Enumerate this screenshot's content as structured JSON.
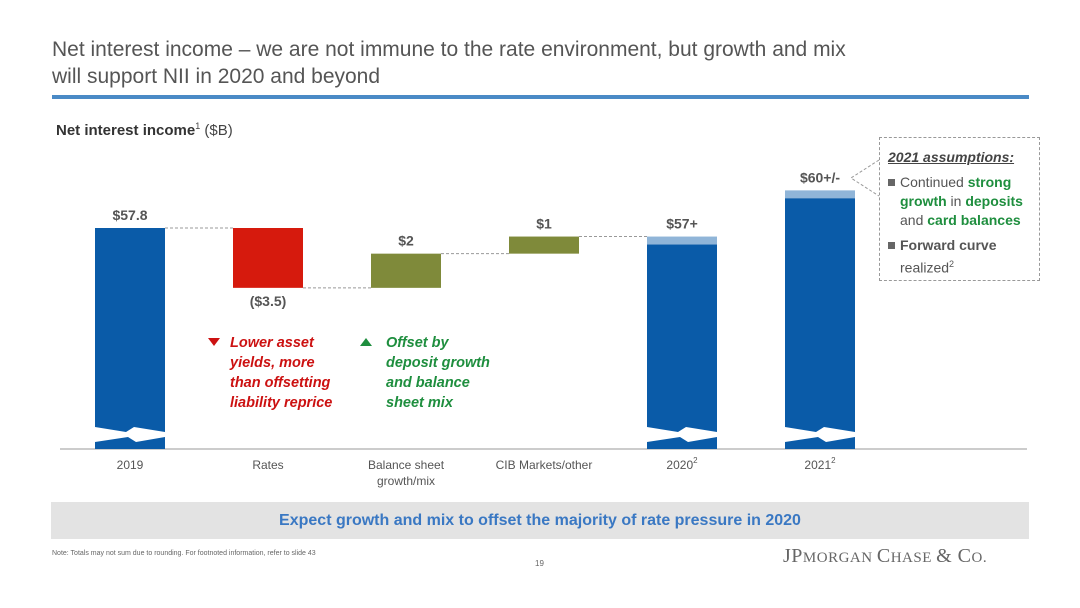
{
  "header": {
    "title_line1": "Net interest income – we are not immune to the rate environment, but growth and mix",
    "title_line2": "will support NII in 2020 and beyond"
  },
  "subtitle": {
    "bold": "Net interest income",
    "sup": "1",
    "unit": "($B)"
  },
  "chart_data": {
    "type": "bar",
    "subtype": "waterfall",
    "categories": [
      "2019",
      "Rates",
      "Balance sheet growth/mix",
      "CIB Markets/other",
      "2020",
      "2021"
    ],
    "category_labels": [
      {
        "line1": "2019",
        "line2": "",
        "sup": ""
      },
      {
        "line1": "Rates",
        "line2": "",
        "sup": ""
      },
      {
        "line1": "Balance sheet",
        "line2": "growth/mix",
        "sup": ""
      },
      {
        "line1": "CIB Markets/other",
        "line2": "",
        "sup": ""
      },
      {
        "line1": "2020",
        "line2": "",
        "sup": "2"
      },
      {
        "line1": "2021",
        "line2": "",
        "sup": "2"
      }
    ],
    "bars": [
      {
        "kind": "total",
        "value": 57.8,
        "label": "$57.8",
        "color": "#0a5ba8"
      },
      {
        "kind": "delta",
        "value": -3.5,
        "label": "($3.5)",
        "color": "#d61a0d"
      },
      {
        "kind": "delta",
        "value": 2,
        "label": "$2",
        "color": "#7f8a3a"
      },
      {
        "kind": "delta",
        "value": 1,
        "label": "$1",
        "color": "#7f8a3a"
      },
      {
        "kind": "total",
        "value": 57.3,
        "label": "$57+",
        "color": "#0a5ba8"
      },
      {
        "kind": "total",
        "value": 60,
        "label": "$60+/-",
        "color": "#0a5ba8"
      }
    ],
    "axis_break": true
  },
  "notes": {
    "rates": [
      "Lower asset",
      "yields, more",
      "than offsetting",
      "liability reprice"
    ],
    "balance": [
      "Offset by",
      "deposit growth",
      "and balance",
      "sheet mix"
    ]
  },
  "assumptions": {
    "header": "2021 assumptions:",
    "item1": {
      "t1": "Continued ",
      "g1": "strong growth",
      "t2": " in ",
      "g2": "deposits",
      "t3": " and ",
      "g3": "card balances"
    },
    "item2": {
      "b": "Forward curve",
      "t": " realized",
      "sup": "2"
    }
  },
  "banner": "Expect growth and mix to offset the majority of rate pressure in 2020",
  "footnote": "Note: Totals may not sum due to rounding. For footnoted information, refer to slide 43",
  "page_number": "19",
  "logo": {
    "a": "JP",
    "b": "MORGAN ",
    "c": "C",
    "d": "HASE ",
    "e": "& C",
    "f": "O."
  }
}
